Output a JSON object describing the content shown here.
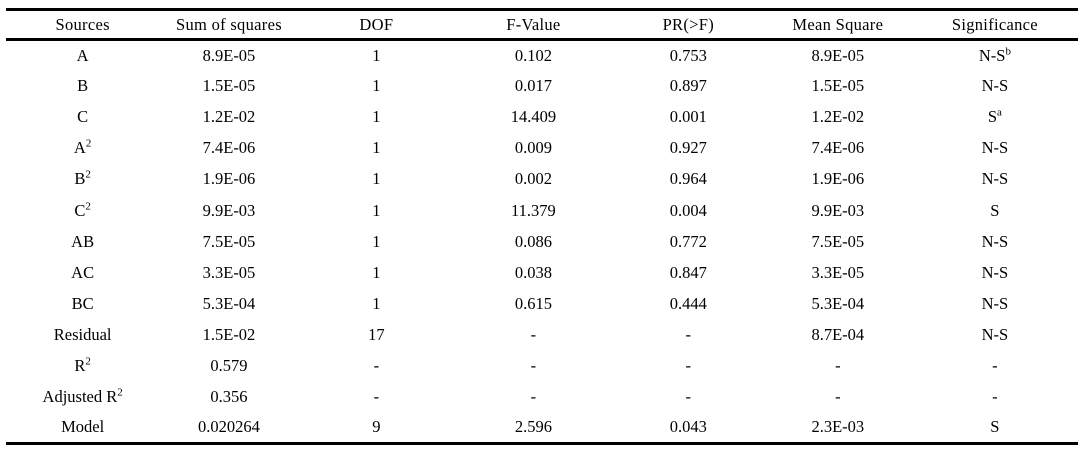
{
  "table": {
    "columns": [
      "Sources",
      "Sum of squares",
      "DOF",
      "F-Value",
      "PR(>F)",
      "Mean Square",
      "Significance"
    ],
    "rows": [
      [
        "A",
        "8.9E-05",
        "1",
        "0.102",
        "0.753",
        "8.9E-05",
        {
          "t": "N-S",
          "sup": "b"
        }
      ],
      [
        "B",
        "1.5E-05",
        "1",
        "0.017",
        "0.897",
        "1.5E-05",
        "N-S"
      ],
      [
        "C",
        "1.2E-02",
        "1",
        "14.409",
        "0.001",
        "1.2E-02",
        {
          "t": "S",
          "sup": "a"
        }
      ],
      [
        {
          "t": "A",
          "sup": "2"
        },
        "7.4E-06",
        "1",
        "0.009",
        "0.927",
        "7.4E-06",
        "N-S"
      ],
      [
        {
          "t": "B",
          "sup": "2"
        },
        "1.9E-06",
        "1",
        "0.002",
        "0.964",
        "1.9E-06",
        "N-S"
      ],
      [
        {
          "t": "C",
          "sup": "2"
        },
        "9.9E-03",
        "1",
        "11.379",
        "0.004",
        "9.9E-03",
        "S"
      ],
      [
        "AB",
        "7.5E-05",
        "1",
        "0.086",
        "0.772",
        "7.5E-05",
        "N-S"
      ],
      [
        "AC",
        "3.3E-05",
        "1",
        "0.038",
        "0.847",
        "3.3E-05",
        "N-S"
      ],
      [
        "BC",
        "5.3E-04",
        "1",
        "0.615",
        "0.444",
        "5.3E-04",
        "N-S"
      ],
      [
        "Residual",
        "1.5E-02",
        "17",
        "-",
        "-",
        "8.7E-04",
        "N-S"
      ],
      [
        {
          "t": "R",
          "sup": "2"
        },
        "0.579",
        "-",
        "-",
        "-",
        "-",
        "-"
      ],
      [
        {
          "t": "Adjusted R",
          "sup": "2"
        },
        "0.356",
        "-",
        "-",
        "-",
        "-",
        "-"
      ],
      [
        "Model",
        "0.020264",
        "9",
        "2.596",
        "0.043",
        "2.3E-03",
        "S"
      ]
    ]
  },
  "colors": {
    "text": "#000000",
    "background": "#ffffff",
    "rule": "#000000"
  }
}
